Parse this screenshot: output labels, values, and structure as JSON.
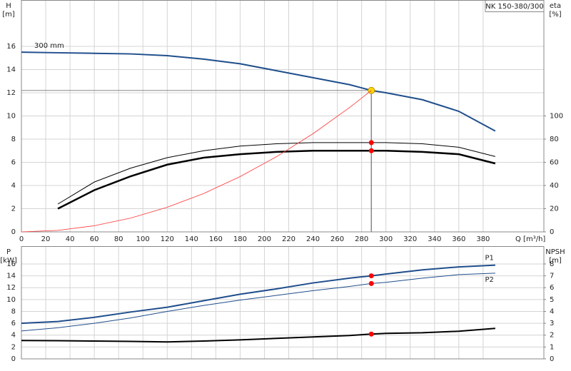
{
  "chart_data": [
    {
      "type": "line",
      "title": "NK 150-380/300",
      "xlabel": "Q [m³/h]",
      "ylabel": [
        "H",
        "[m]"
      ],
      "y2label": [
        "eta",
        "[%]"
      ],
      "x": [
        0,
        30,
        60,
        90,
        120,
        150,
        180,
        210,
        240,
        270,
        288,
        300,
        330,
        360,
        390
      ],
      "xlim": [
        0,
        430
      ],
      "xticks": [
        0,
        20,
        40,
        60,
        80,
        100,
        120,
        140,
        160,
        180,
        200,
        220,
        240,
        260,
        280,
        300,
        320,
        340,
        360,
        380
      ],
      "ylim": [
        0,
        20
      ],
      "yticks": [
        0,
        2,
        4,
        6,
        8,
        10,
        12,
        14,
        16
      ],
      "y2lim": [
        0,
        200
      ],
      "y2ticks": [
        0,
        20,
        40,
        60,
        80,
        100
      ],
      "grid": true,
      "duty_point": {
        "x": 288
      },
      "series": [
        {
          "name": "300 mm",
          "color": "#1f4e8c",
          "marker": "#ffd700",
          "values": [
            15.5,
            15.45,
            15.4,
            15.35,
            15.2,
            14.9,
            14.5,
            13.9,
            13.3,
            12.7,
            12.2,
            12.0,
            11.4,
            10.4,
            8.7
          ]
        },
        {
          "color": "#000000",
          "marker": "#ff0000",
          "axis": "y2",
          "values": [
            null,
            24,
            43,
            55,
            64,
            70,
            74,
            76,
            77,
            77,
            77,
            77,
            76,
            73,
            65
          ]
        },
        {
          "color": "#000000",
          "marker": "#ff0000",
          "axis": "y2",
          "values": [
            null,
            20,
            36,
            48,
            58,
            64,
            67,
            69,
            70,
            70,
            70,
            70,
            69,
            67,
            59
          ]
        },
        {
          "color": "#ff3333",
          "values": [
            0,
            0.13,
            0.53,
            1.19,
            2.12,
            3.31,
            4.77,
            6.49,
            8.47,
            10.72,
            12.2,
            null,
            null,
            null,
            null
          ]
        }
      ]
    },
    {
      "type": "line",
      "ylabel": [
        "P",
        "[kW]"
      ],
      "y2label": [
        "NPSH",
        "[m]"
      ],
      "x": [
        0,
        30,
        60,
        90,
        120,
        150,
        180,
        210,
        240,
        270,
        288,
        300,
        330,
        360,
        390
      ],
      "xlim": [
        0,
        430
      ],
      "xticks": [
        0,
        20,
        40,
        60,
        80,
        100,
        120,
        140,
        160,
        180,
        200,
        220,
        240,
        260,
        280,
        300,
        320,
        340,
        360,
        380
      ],
      "xtick_labels": false,
      "ylim": [
        0,
        19
      ],
      "yticks": [
        0,
        2,
        4,
        6,
        8,
        10,
        12,
        14,
        16
      ],
      "y2lim": [
        0,
        9.5
      ],
      "y2ticks": [
        0,
        1,
        2,
        3,
        4,
        5,
        6,
        7,
        8
      ],
      "grid": true,
      "duty_point": {
        "x": 288
      },
      "series": [
        {
          "name": "P1",
          "color": "#1f4e8c",
          "marker": "#ff0000",
          "values": [
            6.0,
            6.3,
            7.0,
            7.9,
            8.7,
            9.8,
            10.9,
            11.8,
            12.8,
            13.6,
            14.0,
            14.3,
            15.0,
            15.5,
            15.8
          ]
        },
        {
          "name": "P2",
          "color": "#1f4e8c",
          "marker": "#ff0000",
          "values": [
            4.7,
            5.25,
            6.0,
            6.9,
            8.0,
            9.0,
            9.9,
            10.7,
            11.5,
            12.2,
            12.7,
            12.9,
            13.6,
            14.2,
            14.45
          ]
        },
        {
          "color": "#000000",
          "marker": "#ff0000",
          "axis": "y2",
          "values": [
            1.55,
            1.53,
            1.5,
            1.47,
            1.43,
            1.5,
            1.6,
            1.73,
            1.85,
            1.97,
            2.09,
            2.15,
            2.2,
            2.33,
            2.57
          ]
        }
      ]
    }
  ]
}
